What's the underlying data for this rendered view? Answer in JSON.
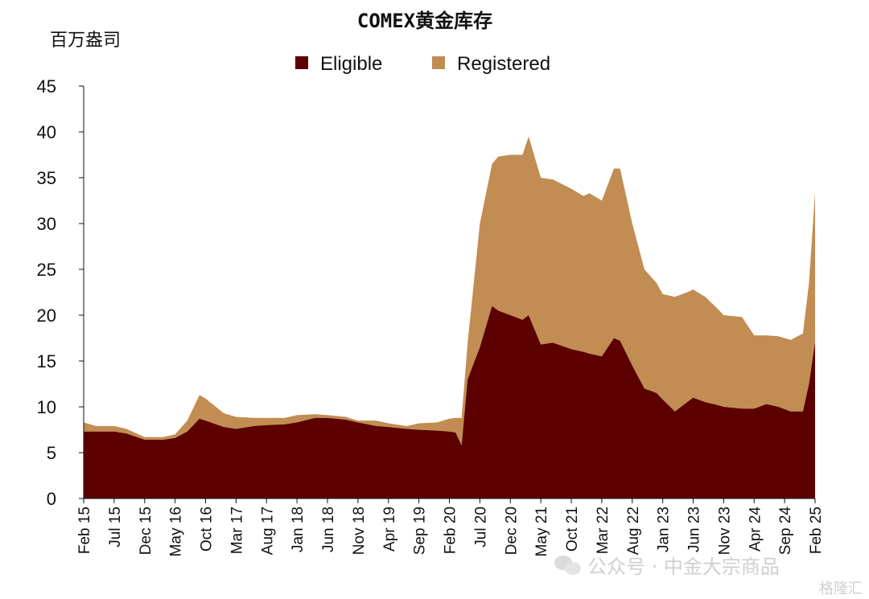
{
  "chart_data": {
    "type": "area",
    "stacked": true,
    "title": "COMEX黄金库存",
    "ylabel": "百万盎司",
    "xlabel": "",
    "ylim": [
      0,
      45
    ],
    "yticks": [
      0,
      5,
      10,
      15,
      20,
      25,
      30,
      35,
      40,
      45
    ],
    "legend_position": "top-center",
    "x_tick_labels": [
      "Feb 15",
      "Jul 15",
      "Dec 15",
      "May 16",
      "Oct 16",
      "Mar 17",
      "Aug 17",
      "Jan 18",
      "Jun 18",
      "Nov 18",
      "Apr 19",
      "Sep 19",
      "Feb 20",
      "Jul 20",
      "Dec 20",
      "May 21",
      "Oct 21",
      "Mar 22",
      "Aug 22",
      "Jan 23",
      "Jun 23",
      "Nov 23",
      "Apr 24",
      "Sep 24",
      "Feb 25"
    ],
    "x": [
      "2015-02",
      "2015-04",
      "2015-07",
      "2015-09",
      "2015-12",
      "2016-03",
      "2016-05",
      "2016-07",
      "2016-09",
      "2016-10",
      "2017-01",
      "2017-03",
      "2017-06",
      "2017-08",
      "2017-11",
      "2018-01",
      "2018-04",
      "2018-06",
      "2018-09",
      "2018-11",
      "2019-02",
      "2019-04",
      "2019-07",
      "2019-09",
      "2019-12",
      "2020-02",
      "2020-03",
      "2020-04",
      "2020-05",
      "2020-07",
      "2020-09",
      "2020-10",
      "2020-12",
      "2021-02",
      "2021-03",
      "2021-05",
      "2021-07",
      "2021-10",
      "2021-12",
      "2022-01",
      "2022-03",
      "2022-05",
      "2022-06",
      "2022-08",
      "2022-10",
      "2022-12",
      "2023-01",
      "2023-03",
      "2023-05",
      "2023-06",
      "2023-08",
      "2023-10",
      "2023-11",
      "2024-02",
      "2024-04",
      "2024-06",
      "2024-08",
      "2024-10",
      "2024-12",
      "2025-01",
      "2025-02"
    ],
    "series": [
      {
        "name": "Eligible",
        "color": "#5c0000",
        "values": [
          7.3,
          7.3,
          7.3,
          7.1,
          6.4,
          6.4,
          6.6,
          7.3,
          8.7,
          8.5,
          7.8,
          7.6,
          7.9,
          8.0,
          8.1,
          8.3,
          8.8,
          8.8,
          8.6,
          8.3,
          7.9,
          7.8,
          7.6,
          7.5,
          7.4,
          7.3,
          7.2,
          5.8,
          13.0,
          16.5,
          21.0,
          20.5,
          20.0,
          19.5,
          20.0,
          16.8,
          17.0,
          16.3,
          16.0,
          15.8,
          15.5,
          17.5,
          17.2,
          14.5,
          12.0,
          11.5,
          10.8,
          9.5,
          10.5,
          11.0,
          10.5,
          10.2,
          10.0,
          9.8,
          9.8,
          10.3,
          10.0,
          9.5,
          9.5,
          12.5,
          17.1
        ]
      },
      {
        "name": "Registered",
        "color": "#c28d52",
        "values": [
          1.0,
          0.6,
          0.6,
          0.5,
          0.3,
          0.3,
          0.4,
          1.2,
          2.6,
          2.4,
          1.5,
          1.3,
          0.9,
          0.8,
          0.7,
          0.8,
          0.4,
          0.3,
          0.3,
          0.2,
          0.6,
          0.4,
          0.3,
          0.7,
          0.9,
          1.4,
          1.6,
          3.0,
          4.0,
          13.5,
          15.5,
          16.8,
          17.5,
          18.0,
          19.5,
          18.2,
          17.8,
          17.5,
          17.0,
          17.5,
          17.0,
          18.5,
          18.8,
          15.5,
          13.0,
          12.0,
          11.5,
          12.5,
          12.0,
          11.8,
          11.5,
          10.5,
          10.0,
          10.0,
          8.0,
          7.5,
          7.7,
          7.8,
          8.5,
          11.0,
          16.3
        ]
      }
    ]
  },
  "watermark": {
    "text": "公众号 · 中金大宗商品",
    "logo_text": "格隆汇",
    "icon": "wechat-icon"
  }
}
